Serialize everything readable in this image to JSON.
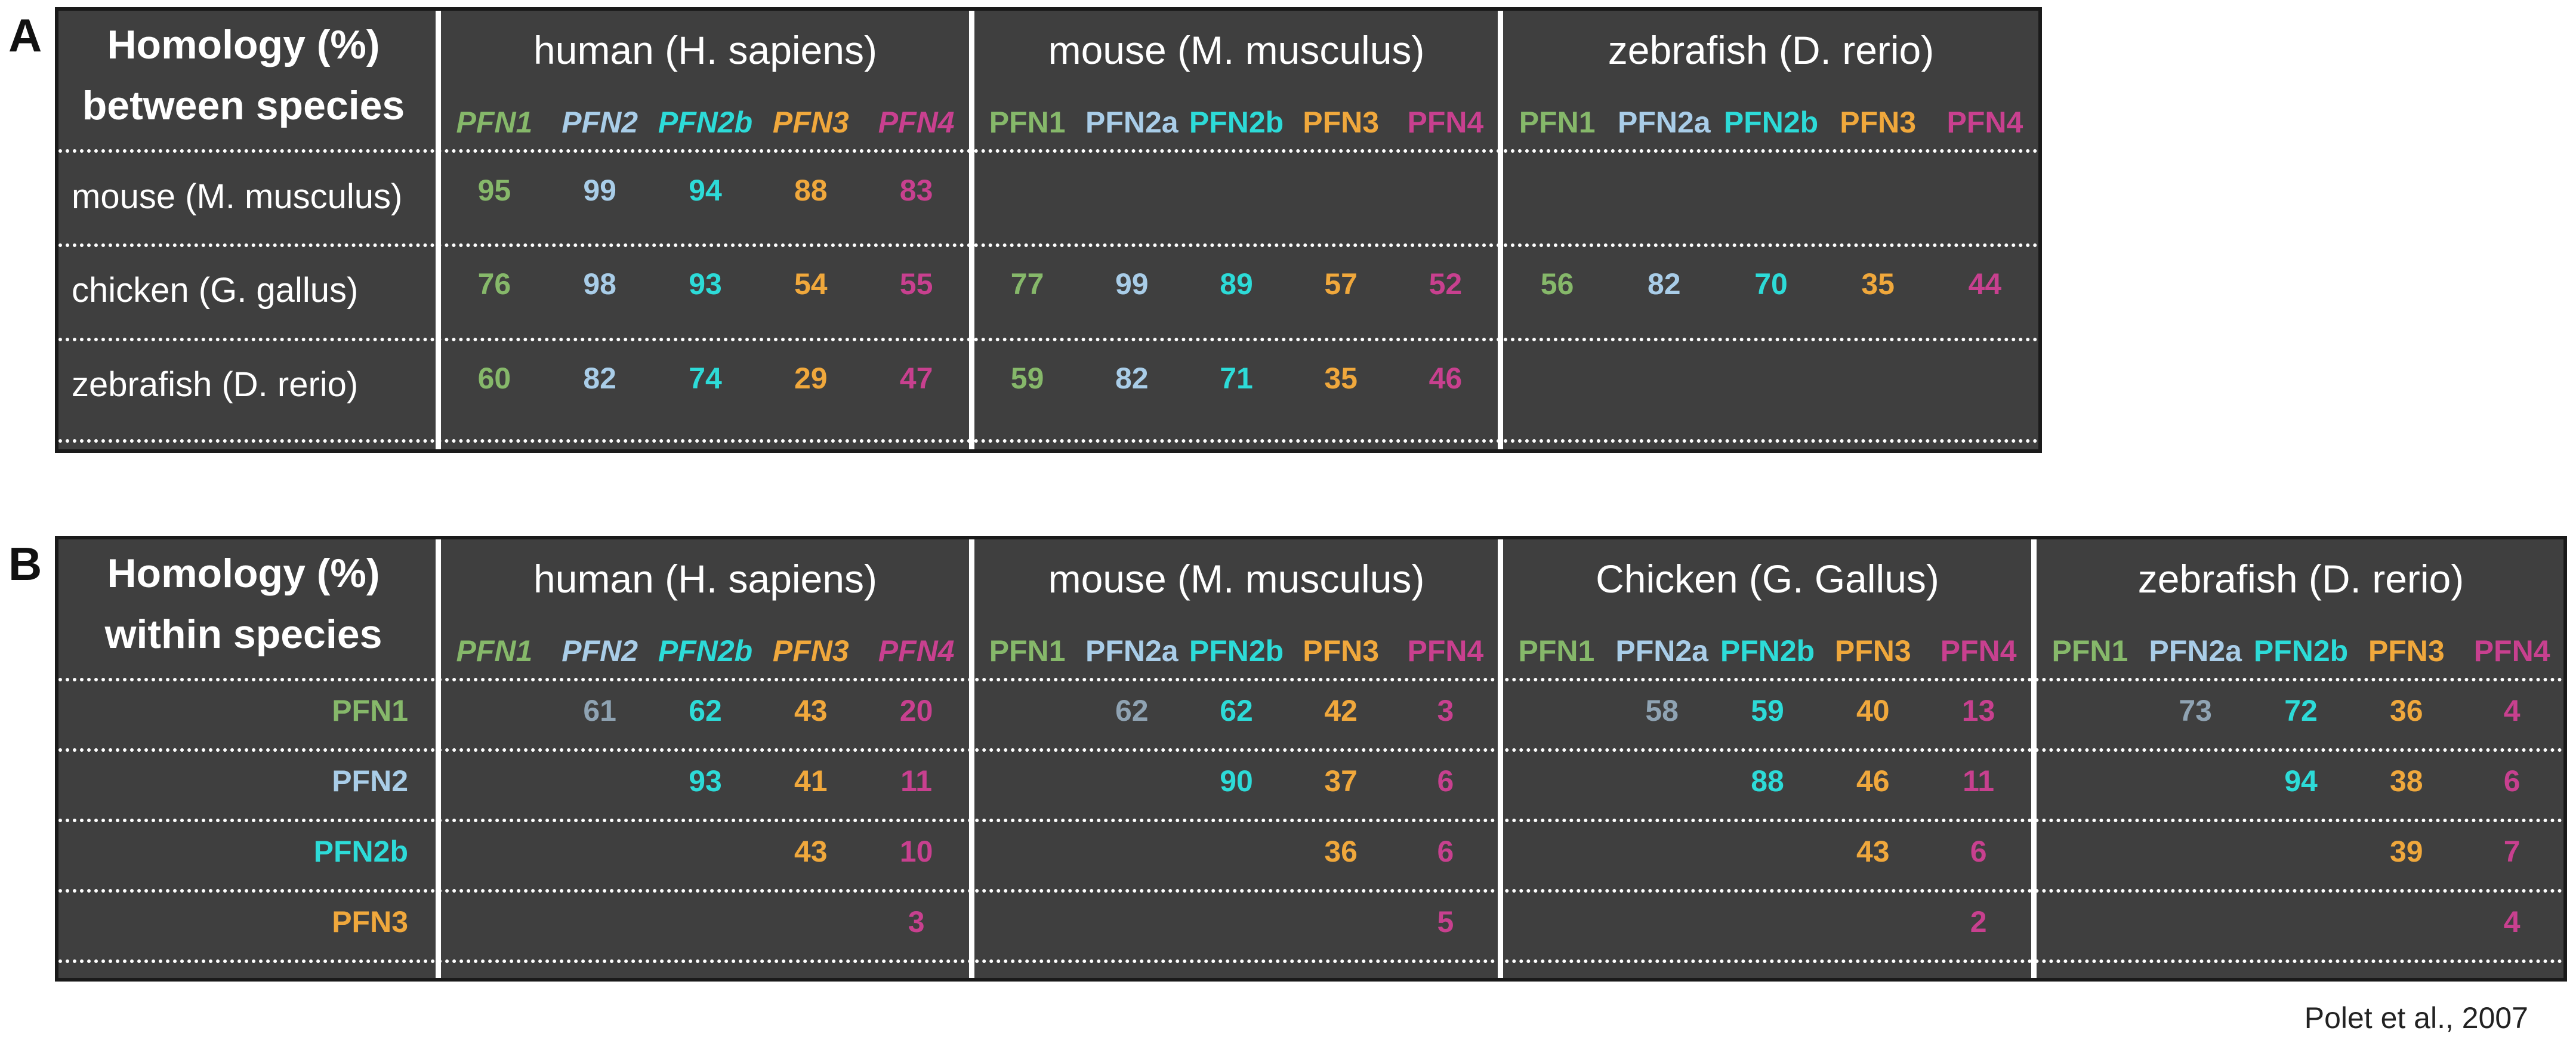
{
  "colors": {
    "PFN1": "#86b86a",
    "PFN2": "#a9cde8",
    "PFN2b": "#2ddbd8",
    "PFN3": "#f0a83c",
    "PFN4": "#c8408f",
    "PFN2_within": "#8fa3b3",
    "background": "#3f3f3f"
  },
  "panelA": {
    "letter": "A",
    "title_line1": "Homology (%)",
    "title_line2": "between species",
    "groups": [
      {
        "species": "human (H. sapiens)",
        "genes": [
          "PFN1",
          "PFN2",
          "PFN2b",
          "PFN3",
          "PFN4"
        ],
        "italic": true
      },
      {
        "species": "mouse (M. musculus)",
        "genes": [
          "PFN1",
          "PFN2a",
          "PFN2b",
          "PFN3",
          "PFN4"
        ],
        "italic": false
      },
      {
        "species": "zebrafish (D. rerio)",
        "genes": [
          "PFN1",
          "PFN2a",
          "PFN2b",
          "PFN3",
          "PFN4"
        ],
        "italic": false
      }
    ],
    "rows": [
      {
        "label": "mouse (M. musculus)",
        "values": [
          [
            "95",
            "99",
            "94",
            "88",
            "83"
          ],
          [],
          []
        ]
      },
      {
        "label": "chicken (G. gallus)",
        "values": [
          [
            "76",
            "98",
            "93",
            "54",
            "55"
          ],
          [
            "77",
            "99",
            "89",
            "57",
            "52"
          ],
          [
            "56",
            "82",
            "70",
            "35",
            "44"
          ]
        ]
      },
      {
        "label": "zebrafish (D. rerio)",
        "values": [
          [
            "60",
            "82",
            "74",
            "29",
            "47"
          ],
          [
            "59",
            "82",
            "71",
            "35",
            "46"
          ],
          []
        ]
      }
    ]
  },
  "panelB": {
    "letter": "B",
    "title_line1": "Homology (%)",
    "title_line2": "within species",
    "groups": [
      {
        "species": "human (H. sapiens)",
        "genes": [
          "PFN1",
          "PFN2",
          "PFN2b",
          "PFN3",
          "PFN4"
        ],
        "italic": true
      },
      {
        "species": "mouse (M. musculus)",
        "genes": [
          "PFN1",
          "PFN2a",
          "PFN2b",
          "PFN3",
          "PFN4"
        ],
        "italic": false
      },
      {
        "species": "Chicken (G. Gallus)",
        "genes": [
          "PFN1",
          "PFN2a",
          "PFN2b",
          "PFN3",
          "PFN4"
        ],
        "italic": false
      },
      {
        "species": "zebrafish (D. rerio)",
        "genes": [
          "PFN1",
          "PFN2a",
          "PFN2b",
          "PFN3",
          "PFN4"
        ],
        "italic": false
      }
    ],
    "rows": [
      {
        "label": "PFN1",
        "values": [
          [
            "",
            "61",
            "62",
            "43",
            "20"
          ],
          [
            "",
            "62",
            "62",
            "42",
            "3"
          ],
          [
            "",
            "58",
            "59",
            "40",
            "13"
          ],
          [
            "",
            "73",
            "72",
            "36",
            "4"
          ]
        ]
      },
      {
        "label": "PFN2",
        "values": [
          [
            "",
            "",
            "93",
            "41",
            "11"
          ],
          [
            "",
            "",
            "90",
            "37",
            "6"
          ],
          [
            "",
            "",
            "88",
            "46",
            "11"
          ],
          [
            "",
            "",
            "94",
            "38",
            "6"
          ]
        ]
      },
      {
        "label": "PFN2b",
        "values": [
          [
            "",
            "",
            "",
            "43",
            "10"
          ],
          [
            "",
            "",
            "",
            "36",
            "6"
          ],
          [
            "",
            "",
            "",
            "43",
            "6"
          ],
          [
            "",
            "",
            "",
            "39",
            "7"
          ]
        ]
      },
      {
        "label": "PFN3",
        "values": [
          [
            "",
            "",
            "",
            "",
            "3"
          ],
          [
            "",
            "",
            "",
            "",
            "5"
          ],
          [
            "",
            "",
            "",
            "",
            "2"
          ],
          [
            "",
            "",
            "",
            "",
            "4"
          ]
        ]
      }
    ]
  },
  "citation": "Polet et al., 2007"
}
